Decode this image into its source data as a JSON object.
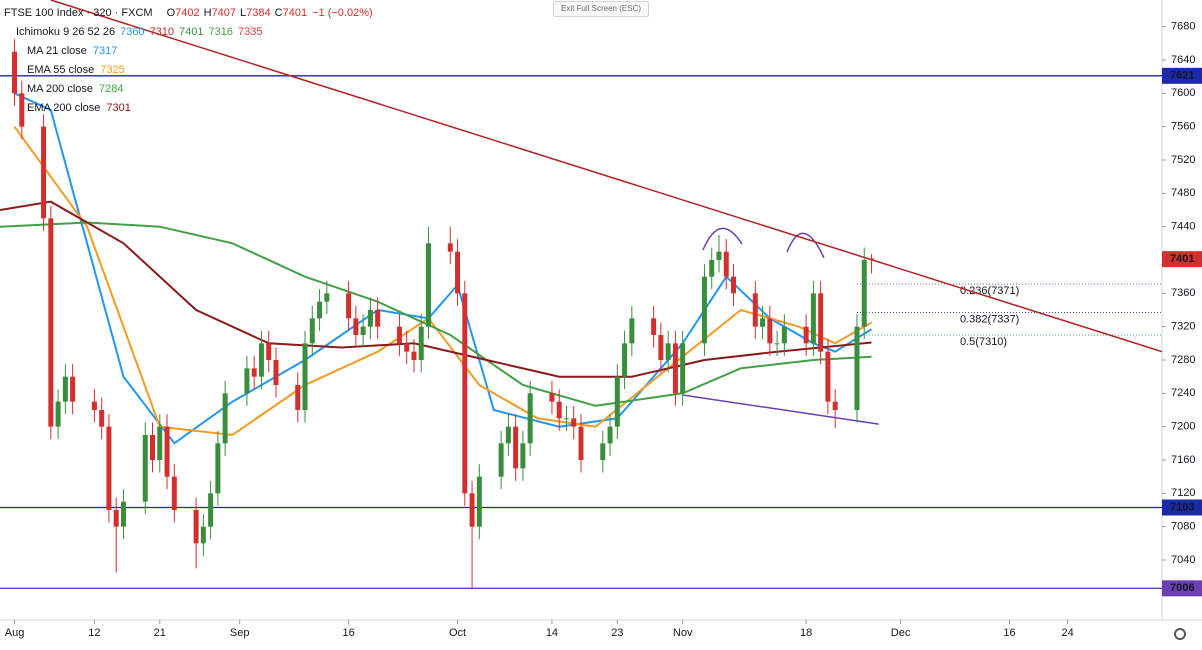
{
  "chart_data": {
    "type": "candlestick",
    "title": "FTSE 100 Index · 320 · FXCM",
    "ohlc": [
      {
        "label": "O",
        "value": 7402
      },
      {
        "label": "H",
        "value": 7407
      },
      {
        "label": "L",
        "value": 7384
      },
      {
        "label": "C",
        "value": 7401
      }
    ],
    "change": "−1 (−0.02%)",
    "up_color": "#388e3c",
    "down_color": "#d32f2f",
    "xlim": [
      -2,
      158
    ],
    "ylim": [
      6968,
      7712
    ],
    "yticks": [
      7040,
      7080,
      7120,
      7160,
      7200,
      7240,
      7280,
      7320,
      7360,
      7400,
      7440,
      7480,
      7520,
      7560,
      7600,
      7640,
      7680
    ],
    "xticks": [
      {
        "value": 0,
        "label": "Aug"
      },
      {
        "value": 11,
        "label": "12"
      },
      {
        "value": 20,
        "label": "21"
      },
      {
        "value": 31,
        "label": "Sep"
      },
      {
        "value": 46,
        "label": "16"
      },
      {
        "value": 61,
        "label": "Oct"
      },
      {
        "value": 74,
        "label": "14"
      },
      {
        "value": 83,
        "label": "23"
      },
      {
        "value": 92,
        "label": "Nov"
      },
      {
        "value": 109,
        "label": "18"
      },
      {
        "value": 122,
        "label": "Dec"
      },
      {
        "value": 137,
        "label": "16"
      },
      {
        "value": 145,
        "label": "24"
      }
    ],
    "grid": false,
    "x": [
      0,
      1,
      4,
      5,
      6,
      7,
      8,
      11,
      12,
      13,
      14,
      15,
      18,
      19,
      20,
      21,
      22,
      25,
      26,
      27,
      28,
      29,
      32,
      33,
      34,
      35,
      36,
      39,
      40,
      41,
      42,
      43,
      46,
      47,
      48,
      49,
      50,
      53,
      54,
      55,
      56,
      57,
      60,
      61,
      62,
      63,
      64,
      67,
      68,
      69,
      70,
      71,
      74,
      75,
      76,
      77,
      78,
      81,
      82,
      83,
      84,
      85,
      88,
      89,
      90,
      91,
      92,
      95,
      96,
      97,
      98,
      99,
      102,
      103,
      104,
      105,
      106,
      109,
      110,
      111,
      112,
      113,
      116,
      117,
      118
    ],
    "open": [
      7650,
      7600,
      7560,
      7450,
      7200,
      7230,
      7260,
      7230,
      7220,
      7200,
      7100,
      7080,
      7110,
      7190,
      7160,
      7200,
      7140,
      7100,
      7060,
      7080,
      7120,
      7180,
      7240,
      7270,
      7260,
      7300,
      7280,
      7250,
      7220,
      7300,
      7330,
      7350,
      7360,
      7330,
      7310,
      7320,
      7340,
      7320,
      7300,
      7290,
      7280,
      7320,
      7420,
      7410,
      7360,
      7120,
      7080,
      7140,
      7180,
      7200,
      7150,
      7180,
      7240,
      7230,
      7210,
      7210,
      7200,
      7160,
      7180,
      7200,
      7260,
      7300,
      7330,
      7310,
      7280,
      7300,
      7240,
      7300,
      7380,
      7400,
      7410,
      7380,
      7360,
      7320,
      7330,
      7300,
      7300,
      7320,
      7300,
      7360,
      7290,
      7230,
      7220,
      7320,
      7402
    ],
    "high": [
      7665,
      7615,
      7575,
      7465,
      7245,
      7275,
      7275,
      7245,
      7235,
      7215,
      7115,
      7125,
      7205,
      7205,
      7215,
      7215,
      7155,
      7115,
      7095,
      7135,
      7195,
      7255,
      7285,
      7285,
      7315,
      7315,
      7295,
      7265,
      7315,
      7345,
      7365,
      7375,
      7375,
      7345,
      7335,
      7355,
      7355,
      7335,
      7315,
      7305,
      7335,
      7440,
      7440,
      7425,
      7375,
      7135,
      7155,
      7195,
      7215,
      7215,
      7195,
      7255,
      7255,
      7245,
      7225,
      7225,
      7215,
      7195,
      7215,
      7275,
      7315,
      7345,
      7345,
      7325,
      7315,
      7315,
      7315,
      7395,
      7415,
      7430,
      7425,
      7395,
      7375,
      7345,
      7345,
      7315,
      7335,
      7335,
      7375,
      7375,
      7305,
      7245,
      7335,
      7415,
      7407
    ],
    "low": [
      7585,
      7545,
      7435,
      7185,
      7185,
      7215,
      7215,
      7205,
      7185,
      7085,
      7025,
      7065,
      7095,
      7145,
      7145,
      7125,
      7085,
      7030,
      7045,
      7065,
      7105,
      7165,
      7225,
      7245,
      7245,
      7265,
      7235,
      7205,
      7205,
      7285,
      7315,
      7335,
      7315,
      7295,
      7295,
      7305,
      7305,
      7285,
      7275,
      7265,
      7265,
      7305,
      7395,
      7345,
      7105,
      7005,
      7065,
      7125,
      7165,
      7135,
      7135,
      7165,
      7215,
      7195,
      7195,
      7185,
      7145,
      7145,
      7165,
      7185,
      7245,
      7285,
      7295,
      7265,
      7265,
      7225,
      7225,
      7285,
      7365,
      7385,
      7365,
      7345,
      7305,
      7305,
      7285,
      7285,
      7285,
      7285,
      7285,
      7275,
      7215,
      7198,
      7205,
      7305,
      7384
    ],
    "close": [
      7600,
      7560,
      7450,
      7200,
      7230,
      7260,
      7230,
      7220,
      7200,
      7100,
      7080,
      7110,
      7190,
      7160,
      7200,
      7140,
      7100,
      7060,
      7080,
      7120,
      7180,
      7240,
      7270,
      7260,
      7300,
      7280,
      7250,
      7220,
      7300,
      7330,
      7350,
      7360,
      7330,
      7310,
      7320,
      7340,
      7320,
      7300,
      7290,
      7280,
      7320,
      7420,
      7410,
      7360,
      7120,
      7080,
      7140,
      7180,
      7200,
      7150,
      7180,
      7240,
      7230,
      7210,
      7210,
      7200,
      7160,
      7180,
      7200,
      7260,
      7300,
      7330,
      7310,
      7280,
      7300,
      7240,
      7300,
      7380,
      7400,
      7410,
      7380,
      7360,
      7320,
      7330,
      7300,
      7300,
      7320,
      7300,
      7360,
      7290,
      7230,
      7220,
      7320,
      7400,
      7401
    ],
    "ichimoku": {
      "name": "Ichimoku 9 26 52 26",
      "values": [
        7360,
        7310,
        7401,
        7316,
        7335
      ],
      "colors": [
        "#2196f3",
        "#c62828",
        "#388e3c",
        "#43a047",
        "#e53935"
      ]
    },
    "series": [
      {
        "name": "MA 21 close",
        "legend_value": 7317,
        "color": "#2196f3",
        "x": [
          0,
          5,
          10,
          15,
          22,
          30,
          40,
          50,
          57,
          61,
          66,
          75,
          83,
          92,
          98,
          104,
          110,
          113,
          118
        ],
        "values": [
          7600,
          7580,
          7420,
          7260,
          7180,
          7230,
          7280,
          7340,
          7330,
          7370,
          7220,
          7200,
          7210,
          7300,
          7380,
          7330,
          7300,
          7290,
          7317
        ]
      },
      {
        "name": "EMA 55 close",
        "legend_value": 7325,
        "color": "#f59a23",
        "x": [
          0,
          10,
          20,
          30,
          40,
          50,
          57,
          64,
          72,
          80,
          90,
          100,
          108,
          113,
          118
        ],
        "values": [
          7560,
          7440,
          7200,
          7190,
          7250,
          7290,
          7330,
          7250,
          7210,
          7200,
          7270,
          7340,
          7320,
          7300,
          7325
        ]
      },
      {
        "name": "MA 200 close",
        "legend_value": 7284,
        "color": "#43a047",
        "x": [
          -2,
          10,
          20,
          30,
          40,
          50,
          60,
          70,
          80,
          92,
          100,
          110,
          118
        ],
        "values": [
          7440,
          7445,
          7440,
          7420,
          7380,
          7350,
          7310,
          7250,
          7225,
          7240,
          7270,
          7280,
          7284
        ]
      },
      {
        "name": "EMA 200 close",
        "legend_value": 7301,
        "color": "#8b1a1a",
        "x": [
          -2,
          5,
          15,
          25,
          35,
          45,
          55,
          65,
          75,
          85,
          95,
          105,
          118
        ],
        "values": [
          7460,
          7470,
          7420,
          7340,
          7300,
          7295,
          7300,
          7280,
          7260,
          7260,
          7280,
          7290,
          7301
        ]
      }
    ],
    "trend_lines": [
      {
        "color": "#b22222",
        "x": [
          5,
          158
        ],
        "y": [
          7712,
          7290
        ]
      },
      {
        "color": "#6a3fb5",
        "x": [
          92,
          119
        ],
        "y": [
          7238,
          7203
        ]
      }
    ],
    "price_lines": [
      {
        "value": 7621,
        "color": "#1a2aa8"
      },
      {
        "value": 7103,
        "color": "#1a2aa8"
      },
      {
        "value": 7006,
        "color": "#6a3fb5"
      }
    ],
    "last_price": {
      "value": 7401,
      "color": "#d32f2f"
    },
    "fib_levels": [
      {
        "label": "0.236(7371)",
        "value": 7371,
        "color": "#7e57c2"
      },
      {
        "label": "0.382(7337)",
        "value": 7337,
        "color": "#3949ab"
      },
      {
        "label": "0.5(7310)",
        "value": 7310,
        "color": "#43a047"
      }
    ],
    "fib_x": [
      116,
      158
    ],
    "exit_button": "Exit Full Screen (ESC)"
  }
}
